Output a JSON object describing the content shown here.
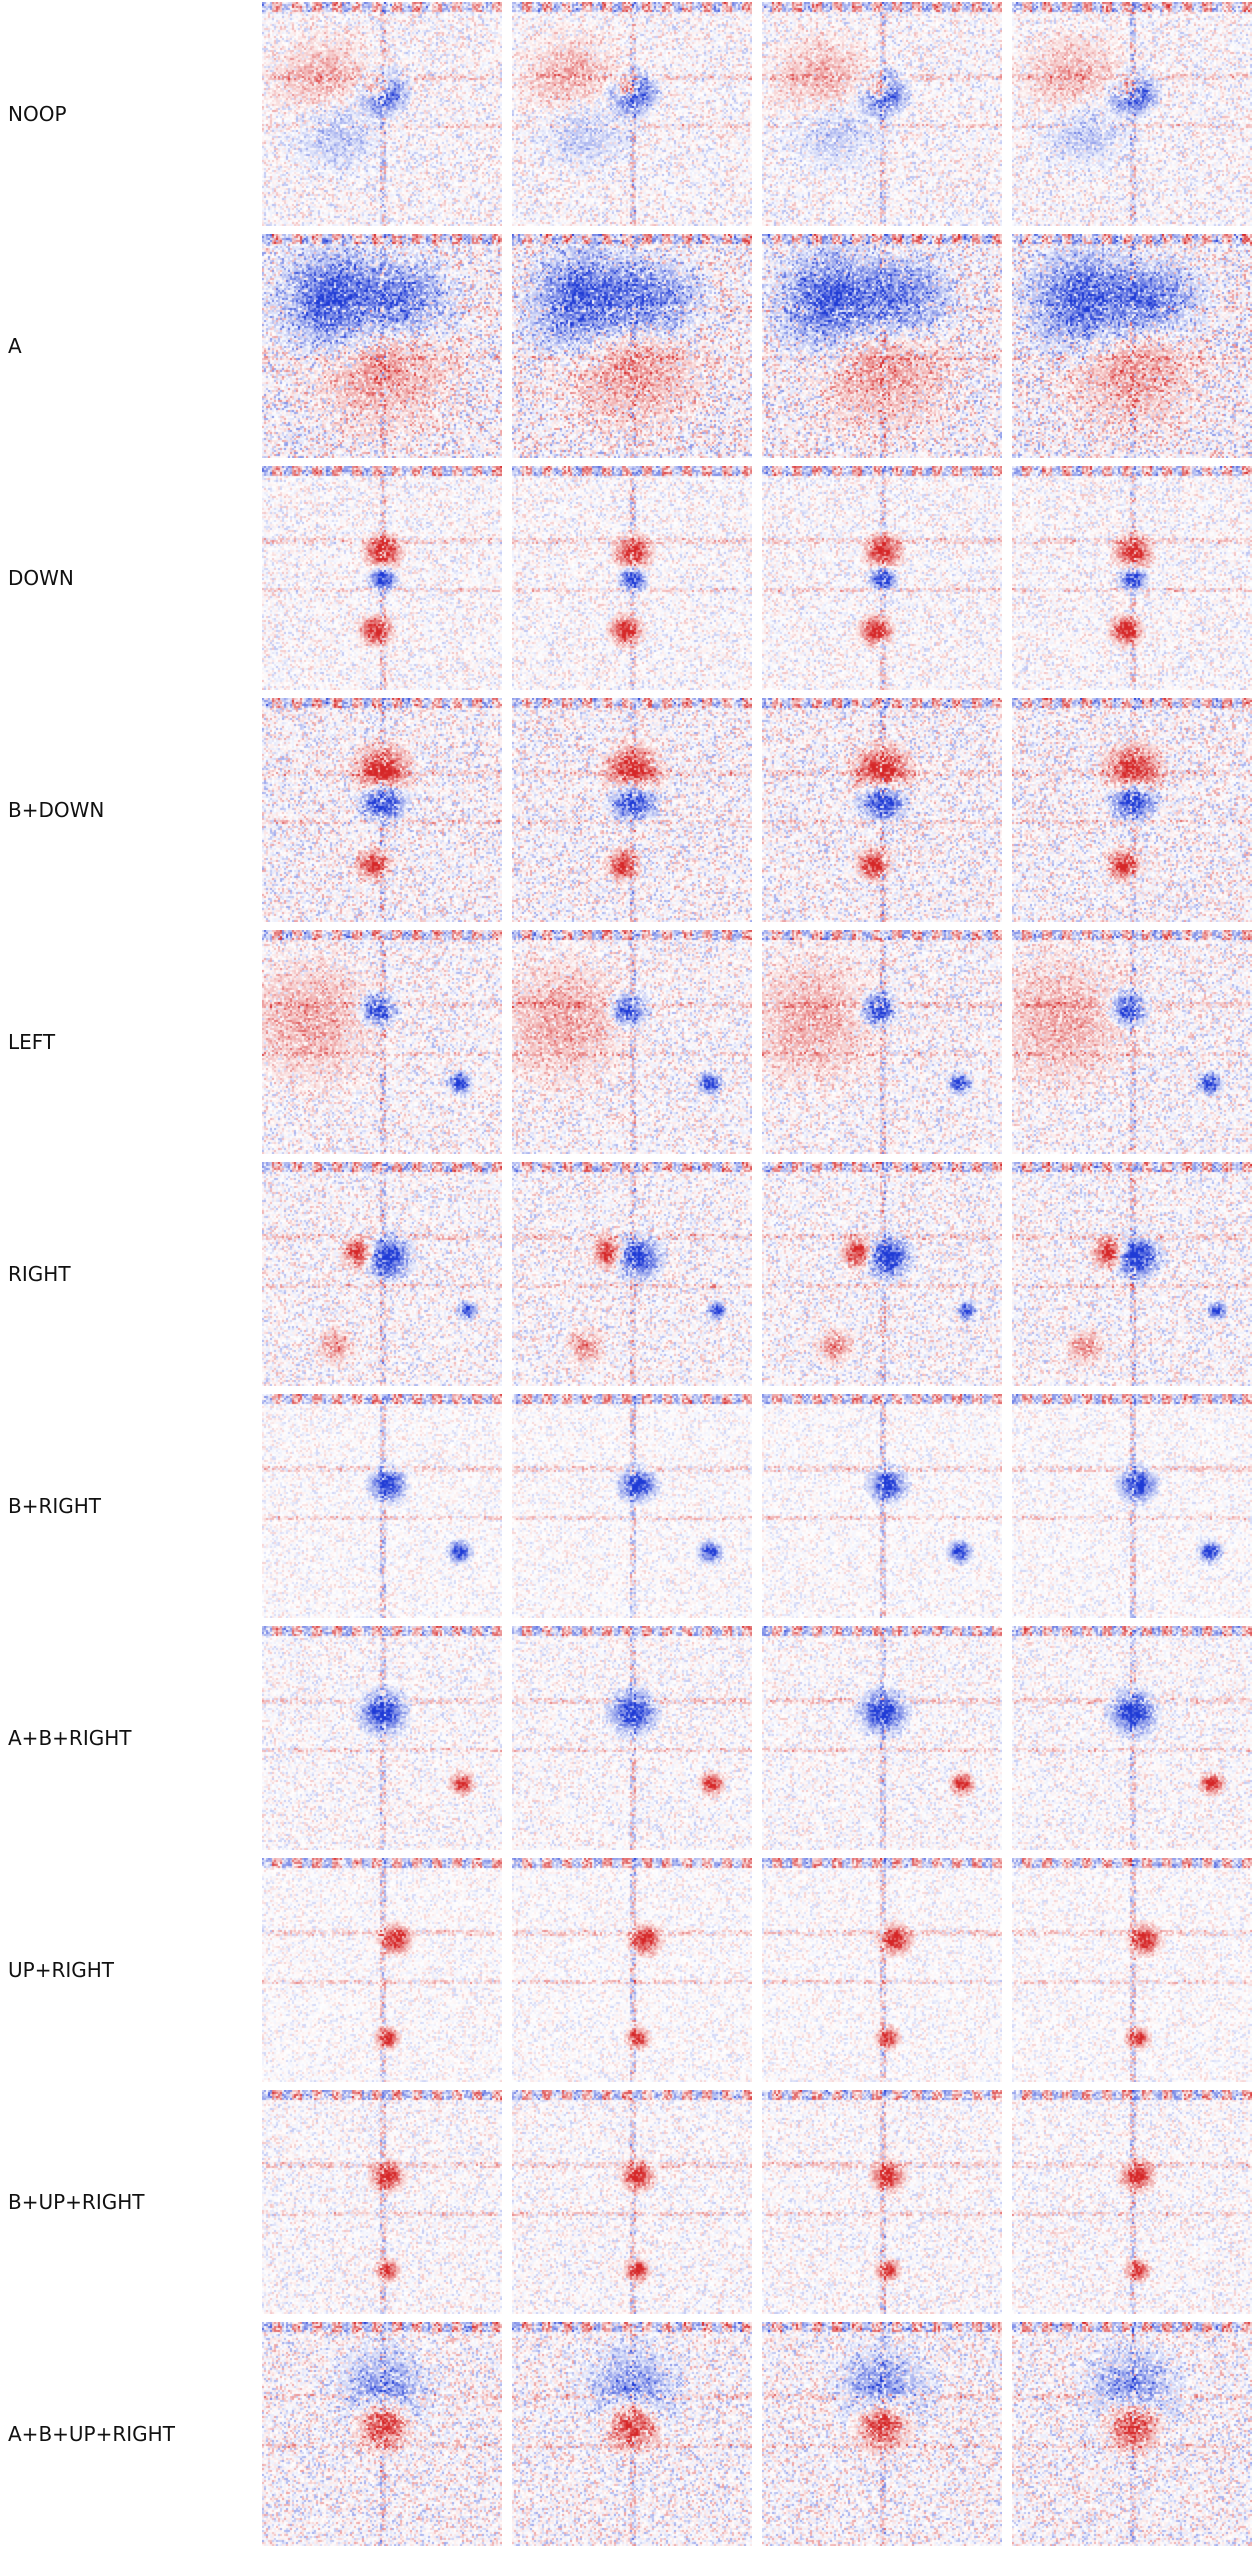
{
  "rows": [
    {
      "label": "NOOP"
    },
    {
      "label": "A"
    },
    {
      "label": "DOWN"
    },
    {
      "label": "B+DOWN"
    },
    {
      "label": "LEFT"
    },
    {
      "label": "RIGHT"
    },
    {
      "label": "B+RIGHT"
    },
    {
      "label": "A+B+RIGHT"
    },
    {
      "label": "UP+RIGHT"
    },
    {
      "label": "B+UP+RIGHT"
    },
    {
      "label": "A+B+UP+RIGHT"
    }
  ],
  "frames_per_row": 4,
  "colors": {
    "positive": "#d62728",
    "negative": "#1f3bd6",
    "background": "#ffffff",
    "label_text": "#111111"
  }
}
